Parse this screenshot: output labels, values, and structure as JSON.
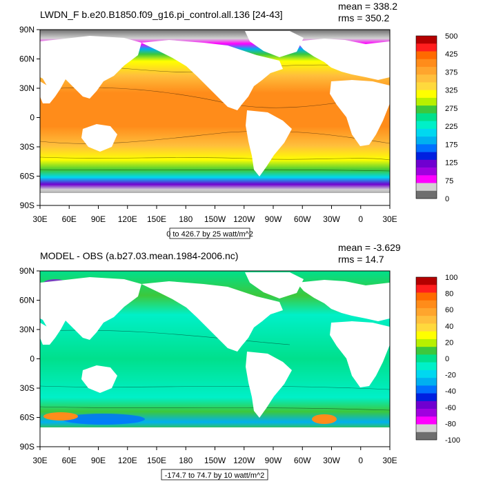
{
  "chart_data": [
    {
      "type": "heatmap",
      "title": "LWDN_F b.e20.B1850.f09_g16.pi_control.all.136 [24-43]",
      "stats": {
        "mean": "mean = 338.2",
        "rms": "rms = 350.2"
      },
      "x_ticks": [
        "30E",
        "60E",
        "90E",
        "120E",
        "150E",
        "180",
        "150W",
        "120W",
        "90W",
        "60W",
        "30W",
        "0",
        "30E"
      ],
      "y_ticks": [
        "90N",
        "60N",
        "30N",
        "0",
        "30S",
        "60S",
        "90S"
      ],
      "colorbar_labels": [
        "500",
        "425",
        "375",
        "325",
        "275",
        "225",
        "175",
        "125",
        "75",
        "0"
      ],
      "colorbar_colors": [
        "#b40000",
        "#ff1e1e",
        "#ff6a00",
        "#ff8c1a",
        "#ffa52d",
        "#ffbf3c",
        "#ffd93d",
        "#ffff00",
        "#b8f000",
        "#3cc83c",
        "#00e08c",
        "#00f0c8",
        "#00d8f0",
        "#00b0f0",
        "#0070ff",
        "#0020e0",
        "#6f00d0",
        "#a000e0",
        "#ff00ff",
        "#d2d2d2",
        "#6e6e6e"
      ],
      "contour_info": "0 to 426.7 by 25 watt/m^2"
    },
    {
      "type": "heatmap",
      "title": "MODEL - OBS (a.b27.03.mean.1984-2006.nc)",
      "stats": {
        "mean": "mean = -3.629",
        "rms": "rms = 14.7"
      },
      "x_ticks": [
        "30E",
        "60E",
        "90E",
        "120E",
        "150E",
        "180",
        "150W",
        "120W",
        "90W",
        "60W",
        "30W",
        "0",
        "30E"
      ],
      "y_ticks": [
        "90N",
        "60N",
        "30N",
        "0",
        "30S",
        "60S",
        "90S"
      ],
      "colorbar_labels": [
        "100",
        "80",
        "60",
        "40",
        "20",
        "0",
        "-20",
        "-40",
        "-60",
        "-80",
        "-100"
      ],
      "colorbar_colors": [
        "#b40000",
        "#ff1e1e",
        "#ff6a00",
        "#ff8c1a",
        "#ffa52d",
        "#ffbf3c",
        "#ffd93d",
        "#ffff00",
        "#b8f000",
        "#3cc83c",
        "#00e08c",
        "#00f0c8",
        "#00d8f0",
        "#00b0f0",
        "#0070ff",
        "#0020e0",
        "#6f00d0",
        "#a000e0",
        "#ff00ff",
        "#d2d2d2",
        "#6e6e6e"
      ],
      "contour_info": "-174.7 to 74.7 by 10 watt/m^2"
    }
  ],
  "colors": {
    "land": "#ffffff",
    "ocean_top_main": "#ff8c1a",
    "ocean_top_mid": "#ffbf3c",
    "ocean_bottom_main": "#00e08c"
  }
}
